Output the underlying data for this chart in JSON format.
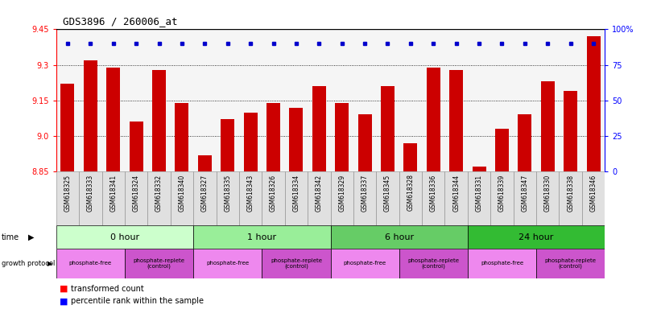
{
  "title": "GDS3896 / 260006_at",
  "samples": [
    "GSM618325",
    "GSM618333",
    "GSM618341",
    "GSM618324",
    "GSM618332",
    "GSM618340",
    "GSM618327",
    "GSM618335",
    "GSM618343",
    "GSM618326",
    "GSM618334",
    "GSM618342",
    "GSM618329",
    "GSM618337",
    "GSM618345",
    "GSM618328",
    "GSM618336",
    "GSM618344",
    "GSM618331",
    "GSM618339",
    "GSM618347",
    "GSM618330",
    "GSM618338",
    "GSM618346"
  ],
  "bar_values": [
    9.22,
    9.32,
    9.29,
    9.06,
    9.28,
    9.14,
    8.92,
    9.07,
    9.1,
    9.14,
    9.12,
    9.21,
    9.14,
    9.09,
    9.21,
    8.97,
    9.29,
    9.28,
    8.87,
    9.03,
    9.09,
    9.23,
    9.19,
    9.42
  ],
  "percentile_values": [
    97,
    97,
    97,
    95,
    97,
    95,
    95,
    95,
    97,
    97,
    97,
    97,
    97,
    97,
    97,
    95,
    97,
    97,
    95,
    95,
    95,
    97,
    97,
    97
  ],
  "ymin": 8.85,
  "ymax": 9.45,
  "yticks": [
    8.85,
    9.0,
    9.15,
    9.3,
    9.45
  ],
  "right_yticks": [
    0,
    25,
    50,
    75,
    100
  ],
  "right_yticklabels": [
    "0",
    "25",
    "50",
    "75",
    "100%"
  ],
  "bar_color": "#cc0000",
  "dot_color": "#0000cc",
  "time_groups": [
    {
      "label": "0 hour",
      "start": 0,
      "end": 6,
      "color": "#ccffcc"
    },
    {
      "label": "1 hour",
      "start": 6,
      "end": 12,
      "color": "#99ee99"
    },
    {
      "label": "6 hour",
      "start": 12,
      "end": 18,
      "color": "#66cc66"
    },
    {
      "label": "24 hour",
      "start": 18,
      "end": 24,
      "color": "#33bb33"
    }
  ],
  "protocol_groups": [
    {
      "label": "phosphate-free",
      "start": 0,
      "end": 3,
      "color": "#ee88ee"
    },
    {
      "label": "phosphate-replete\n(control)",
      "start": 3,
      "end": 6,
      "color": "#cc55cc"
    },
    {
      "label": "phosphate-free",
      "start": 6,
      "end": 9,
      "color": "#ee88ee"
    },
    {
      "label": "phosphate-replete\n(control)",
      "start": 9,
      "end": 12,
      "color": "#cc55cc"
    },
    {
      "label": "phosphate-free",
      "start": 12,
      "end": 15,
      "color": "#ee88ee"
    },
    {
      "label": "phosphate-replete\n(control)",
      "start": 15,
      "end": 18,
      "color": "#cc55cc"
    },
    {
      "label": "phosphate-free",
      "start": 18,
      "end": 21,
      "color": "#ee88ee"
    },
    {
      "label": "phosphate-replete\n(control)",
      "start": 21,
      "end": 24,
      "color": "#cc55cc"
    }
  ]
}
